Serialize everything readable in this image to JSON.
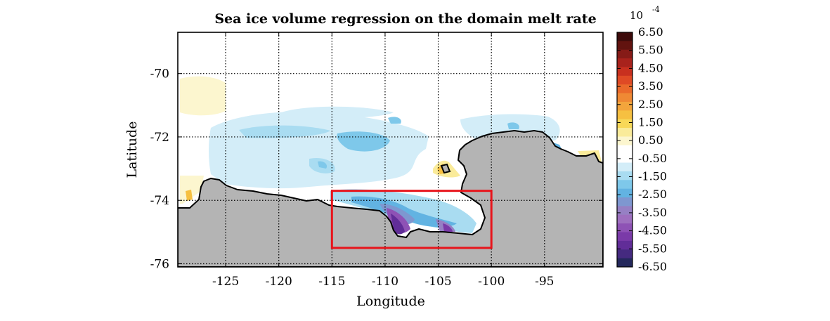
{
  "chart_data": {
    "type": "heatmap",
    "title": "Sea ice volume regression on the domain melt rate",
    "xlabel": "Longitude",
    "ylabel": "Latitude",
    "xlim": [
      -129.5,
      -89.5
    ],
    "ylim": [
      -76.1,
      -68.7
    ],
    "x_ticks": [
      -125,
      -120,
      -115,
      -110,
      -105,
      -100,
      -95
    ],
    "y_ticks": [
      -70,
      -72,
      -74,
      -76
    ],
    "grid": true,
    "colorbar": {
      "exponent_label": "10",
      "exponent_power": "-4",
      "tick_labels": [
        "6.50",
        "5.50",
        "4.50",
        "3.50",
        "2.50",
        "1.50",
        "0.50",
        "-0.50",
        "-1.50",
        "-2.50",
        "-3.50",
        "-4.50",
        "-5.50",
        "-6.50"
      ],
      "levels": [
        {
          "value": 6.5,
          "color": "#3d0b0b"
        },
        {
          "value": 6.0,
          "color": "#62130f"
        },
        {
          "value": 5.5,
          "color": "#861b17"
        },
        {
          "value": 5.0,
          "color": "#a8221c"
        },
        {
          "value": 4.5,
          "color": "#c8301f"
        },
        {
          "value": 4.0,
          "color": "#df4a25"
        },
        {
          "value": 3.5,
          "color": "#ea6a2b"
        },
        {
          "value": 3.0,
          "color": "#ef8934"
        },
        {
          "value": 2.5,
          "color": "#f3a53c"
        },
        {
          "value": 2.0,
          "color": "#f6c041"
        },
        {
          "value": 1.5,
          "color": "#f8d858"
        },
        {
          "value": 1.0,
          "color": "#faeb9a"
        },
        {
          "value": 0.5,
          "color": "#fcf6cf"
        },
        {
          "value": 0.0,
          "color": "#ffffff"
        },
        {
          "value": -0.5,
          "color": "#ffffff"
        },
        {
          "value": -1.0,
          "color": "#d3edf8"
        },
        {
          "value": -1.5,
          "color": "#a9dcf1"
        },
        {
          "value": -2.0,
          "color": "#7ec8ea"
        },
        {
          "value": -2.5,
          "color": "#62b3e2"
        },
        {
          "value": -3.0,
          "color": "#7e97d0"
        },
        {
          "value": -3.5,
          "color": "#9680c4"
        },
        {
          "value": -4.0,
          "color": "#9e6fbf"
        },
        {
          "value": -4.5,
          "color": "#8e52b5"
        },
        {
          "value": -5.0,
          "color": "#7a3aa8"
        },
        {
          "value": -5.5,
          "color": "#612d98"
        },
        {
          "value": -6.0,
          "color": "#452a80"
        },
        {
          "value": -6.5,
          "color": "#24285c"
        }
      ]
    },
    "land_color": "#b4b4b4",
    "highlight_box": {
      "lon_min": -115,
      "lon_max": -100,
      "lat_min": -75.5,
      "lat_max": -73.7,
      "color": "#e8141b"
    }
  }
}
